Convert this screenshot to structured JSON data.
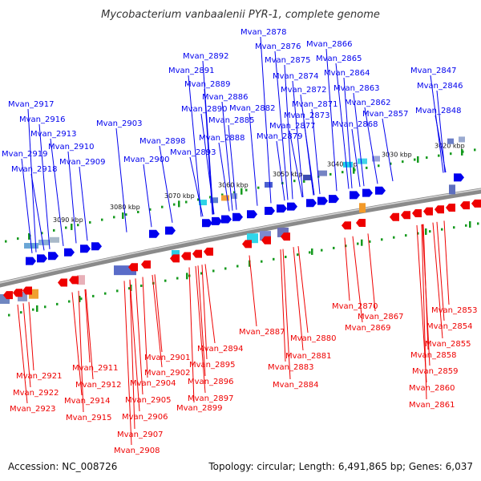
{
  "title": "Mycobacterium vanbaalenii PYR-1, complete genome",
  "footer": {
    "accession": "Accession: NC_008726",
    "summary": "Topology: circular; Length: 6,491,865 bp; Genes: 6,037"
  },
  "colors": {
    "forward": "#0000ee",
    "reverse": "#ee0000",
    "tick": "#159a1e",
    "backbone": "#8a8a8a",
    "title": "#333333"
  },
  "kbp_markers": [
    "3090 kbp",
    "3080 kbp",
    "3070 kbp",
    "3060 kbp",
    "3050 kbp",
    "3040 kbp",
    "3030 kbp",
    "3020 kbp"
  ],
  "forward_genes": [
    "Mvan_2917",
    "Mvan_2916",
    "Mvan_2913",
    "Mvan_2910",
    "Mvan_2919",
    "Mvan_2918",
    "Mvan_2909",
    "Mvan_2903",
    "Mvan_2898",
    "Mvan_2900",
    "Mvan_2892",
    "Mvan_2891",
    "Mvan_2889",
    "Mvan_2886",
    "Mvan_2890",
    "Mvan_2885",
    "Mvan_2888",
    "Mvan_2893",
    "Mvan_2882",
    "Mvan_2878",
    "Mvan_2876",
    "Mvan_2875",
    "Mvan_2874",
    "Mvan_2872",
    "Mvan_2871",
    "Mvan_2873",
    "Mvan_2877",
    "Mvan_2879",
    "Mvan_2866",
    "Mvan_2865",
    "Mvan_2864",
    "Mvan_2863",
    "Mvan_2862",
    "Mvan_2868",
    "Mvan_2857",
    "Mvan_2847",
    "Mvan_2846",
    "Mvan_2848"
  ],
  "reverse_genes": [
    "Mvan_2921",
    "Mvan_2922",
    "Mvan_2923",
    "Mvan_2911",
    "Mvan_2912",
    "Mvan_2914",
    "Mvan_2915",
    "Mvan_2901",
    "Mvan_2902",
    "Mvan_2904",
    "Mvan_2905",
    "Mvan_2906",
    "Mvan_2907",
    "Mvan_2908",
    "Mvan_2894",
    "Mvan_2895",
    "Mvan_2896",
    "Mvan_2897",
    "Mvan_2899",
    "Mvan_2887",
    "Mvan_2881",
    "Mvan_2883",
    "Mvan_2884",
    "Mvan_2880",
    "Mvan_2870",
    "Mvan_2867",
    "Mvan_2869",
    "Mvan_2853",
    "Mvan_2854",
    "Mvan_2855",
    "Mvan_2858",
    "Mvan_2859",
    "Mvan_2860",
    "Mvan_2861"
  ]
}
